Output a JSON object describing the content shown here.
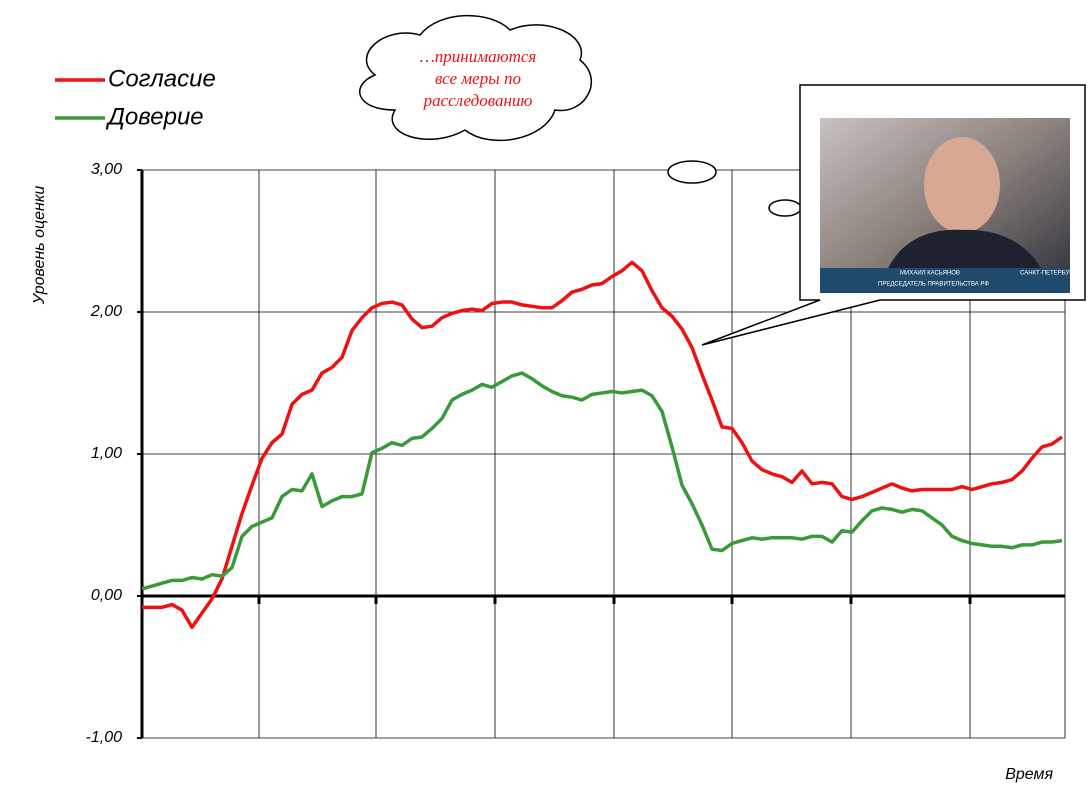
{
  "chart_data": {
    "type": "line",
    "y_label": "Уровень оценки",
    "x_label": "Время",
    "annotation": [
      "…принимаются",
      "все меры по",
      "расследованию"
    ],
    "photo_caption": [
      "МИХАИЛ КАСЬЯНОВ",
      "ПРЕДСЕДАТЕЛЬ ПРАВИТЕЛЬСТВА РФ",
      "САНКТ-ПЕТЕРБУРГ"
    ],
    "ylim": [
      -1,
      3
    ],
    "yticks": [
      {
        "value": -1,
        "label": "-1,00"
      },
      {
        "value": 0,
        "label": "0,00"
      },
      {
        "value": 1,
        "label": "1,00"
      },
      {
        "value": 2,
        "label": "2,00"
      },
      {
        "value": 3,
        "label": "3,00"
      }
    ],
    "grid": true,
    "legend": "top-left",
    "series": [
      {
        "name": "Согласие",
        "color": "#ee1111",
        "values": [
          -0.08,
          -0.08,
          -0.08,
          -0.06,
          -0.1,
          -0.22,
          -0.12,
          -0.02,
          0.12,
          0.35,
          0.58,
          0.78,
          0.97,
          1.08,
          1.14,
          1.35,
          1.42,
          1.45,
          1.57,
          1.61,
          1.68,
          1.87,
          1.96,
          2.03,
          2.06,
          2.07,
          2.05,
          1.95,
          1.89,
          1.9,
          1.96,
          1.99,
          2.01,
          2.02,
          2.01,
          2.06,
          2.07,
          2.07,
          2.05,
          2.04,
          2.03,
          2.03,
          2.08,
          2.14,
          2.16,
          2.19,
          2.2,
          2.25,
          2.29,
          2.35,
          2.29,
          2.15,
          2.03,
          1.97,
          1.88,
          1.75,
          1.56,
          1.38,
          1.19,
          1.18,
          1.08,
          0.95,
          0.89,
          0.86,
          0.84,
          0.8,
          0.88,
          0.79,
          0.8,
          0.79,
          0.7,
          0.68,
          0.7,
          0.73,
          0.76,
          0.79,
          0.76,
          0.74,
          0.75,
          0.75,
          0.75,
          0.75,
          0.77,
          0.75,
          0.77,
          0.79,
          0.8,
          0.82,
          0.88,
          0.97,
          1.05,
          1.07,
          1.12
        ]
      },
      {
        "name": "Доверие",
        "color": "#3a9a3a",
        "values": [
          0.05,
          0.07,
          0.09,
          0.11,
          0.11,
          0.13,
          0.12,
          0.15,
          0.14,
          0.2,
          0.42,
          0.49,
          0.52,
          0.55,
          0.7,
          0.75,
          0.74,
          0.86,
          0.63,
          0.67,
          0.7,
          0.7,
          0.72,
          1.01,
          1.04,
          1.08,
          1.06,
          1.11,
          1.12,
          1.18,
          1.25,
          1.38,
          1.42,
          1.45,
          1.49,
          1.47,
          1.51,
          1.55,
          1.57,
          1.53,
          1.48,
          1.44,
          1.41,
          1.4,
          1.38,
          1.42,
          1.43,
          1.44,
          1.43,
          1.44,
          1.45,
          1.41,
          1.3,
          1.05,
          0.78,
          0.65,
          0.5,
          0.33,
          0.32,
          0.37,
          0.39,
          0.41,
          0.4,
          0.41,
          0.41,
          0.41,
          0.4,
          0.42,
          0.42,
          0.38,
          0.46,
          0.45,
          0.53,
          0.6,
          0.62,
          0.61,
          0.59,
          0.61,
          0.6,
          0.55,
          0.5,
          0.42,
          0.39,
          0.37,
          0.36,
          0.35,
          0.35,
          0.34,
          0.36,
          0.36,
          0.38,
          0.38,
          0.39
        ]
      }
    ]
  }
}
